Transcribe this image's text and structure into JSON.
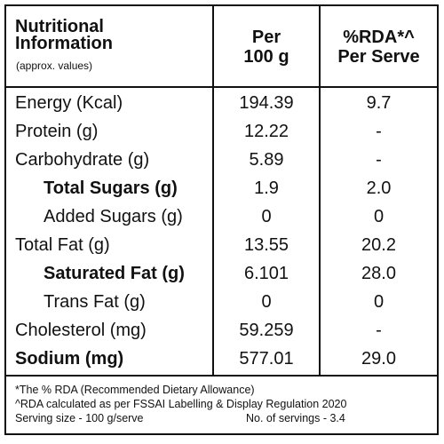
{
  "header": {
    "title_line1": "Nutritional",
    "title_line2": "Information",
    "subtitle": "(approx. values)",
    "col_per100_line1": "Per",
    "col_per100_line2": "100 g",
    "col_rda_line1": "%RDA*^",
    "col_rda_line2": "Per Serve"
  },
  "rows": [
    {
      "label": "Energy (Kcal)",
      "per100": "194.39",
      "rda": "9.7"
    },
    {
      "label": "Protein (g)",
      "per100": "12.22",
      "rda": "-"
    },
    {
      "label": "Carbohydrate (g)",
      "per100": "5.89",
      "rda": "-"
    },
    {
      "label": "Total Sugars (g)",
      "per100": "1.9",
      "rda": "2.0"
    },
    {
      "label": "Added Sugars (g)",
      "per100": "0",
      "rda": "0"
    },
    {
      "label": "Total Fat (g)",
      "per100": "13.55",
      "rda": "20.2"
    },
    {
      "label": "Saturated Fat (g)",
      "per100": "6.101",
      "rda": "28.0"
    },
    {
      "label": "Trans Fat (g)",
      "per100": "0",
      "rda": "0"
    },
    {
      "label": "Cholesterol (mg)",
      "per100": "59.259",
      "rda": "-"
    },
    {
      "label": "Sodium (mg)",
      "per100": "577.01",
      "rda": "29.0"
    }
  ],
  "footnotes": {
    "line1": "*The % RDA (Recommended Dietary Allowance)",
    "line2": "^RDA calculated as per FSSAI Labelling & Display Regulation 2020",
    "serving_size": "Serving size - 100 g/serve",
    "servings": "No. of servings - 3.4"
  }
}
